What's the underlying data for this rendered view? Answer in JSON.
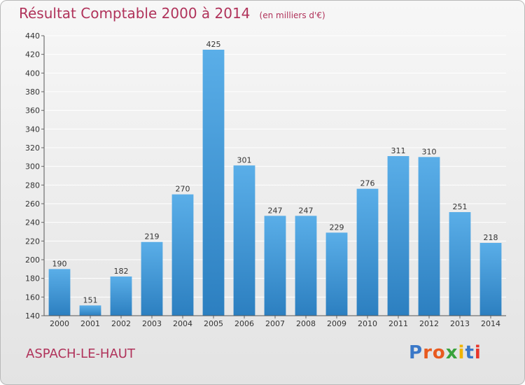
{
  "header": {
    "title": "Résultat Comptable 2000 à 2014",
    "unit": "(en milliers d'€)"
  },
  "footer": {
    "place": "ASPACH-LE-HAUT",
    "logo": "Proxiti"
  },
  "colors": {
    "title": "#b0325a",
    "bar_top": "#5aaee8",
    "bar_bottom": "#2c7fc0",
    "grid": "#ffffff",
    "logo_letters": [
      "#3a78c8",
      "#e85a1f",
      "#e85a1f",
      "#39a23c",
      "#f0b400",
      "#3a78c8",
      "#e8362a"
    ]
  },
  "chart_data": {
    "type": "bar",
    "categories": [
      "2000",
      "2001",
      "2002",
      "2003",
      "2004",
      "2005",
      "2006",
      "2007",
      "2008",
      "2009",
      "2010",
      "2011",
      "2012",
      "2013",
      "2014"
    ],
    "values": [
      190,
      151,
      182,
      219,
      270,
      425,
      301,
      247,
      247,
      229,
      276,
      311,
      310,
      251,
      218
    ],
    "title": "Résultat Comptable 2000 à 2014",
    "xlabel": "",
    "ylabel": "",
    "ylim": [
      140,
      440
    ],
    "yticks": [
      140,
      160,
      180,
      200,
      220,
      240,
      260,
      280,
      300,
      320,
      340,
      360,
      380,
      400,
      420,
      440
    ],
    "grid": true,
    "data_labels": true
  }
}
